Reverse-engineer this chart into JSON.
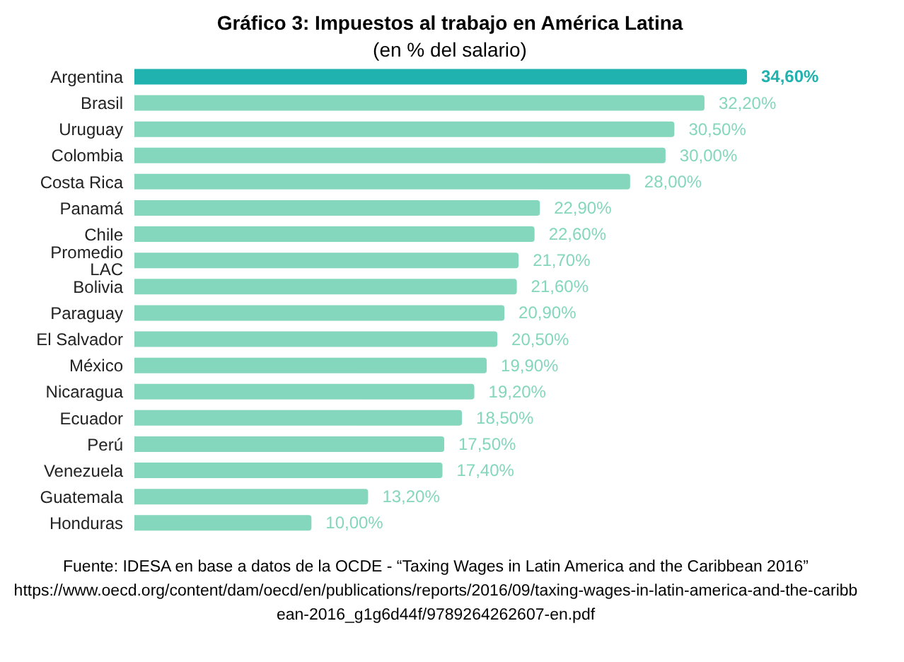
{
  "chart_data": {
    "type": "bar",
    "orientation": "horizontal",
    "title": "Gráfico 3: Impuestos al trabajo en América Latina",
    "subtitle": "(en % del salario)",
    "categories": [
      "Argentina",
      "Brasil",
      "Uruguay",
      "Colombia",
      "Costa Rica",
      "Panamá",
      "Chile",
      "Promedio LAC",
      "Bolivia",
      "Paraguay",
      "El Salvador",
      "México",
      "Nicaragua",
      "Ecuador",
      "Perú",
      "Venezuela",
      "Guatemala",
      "Honduras"
    ],
    "values": [
      34.6,
      32.2,
      30.5,
      30.0,
      28.0,
      22.9,
      22.6,
      21.7,
      21.6,
      20.9,
      20.5,
      19.9,
      19.2,
      18.5,
      17.5,
      17.4,
      13.2,
      10.0
    ],
    "value_labels": [
      "34,60%",
      "32,20%",
      "30,50%",
      "30,00%",
      "28,00%",
      "22,90%",
      "22,60%",
      "21,70%",
      "21,60%",
      "20,90%",
      "20,50%",
      "19,90%",
      "19,20%",
      "18,50%",
      "17,50%",
      "17,40%",
      "13,20%",
      "10,00%"
    ],
    "colors": [
      "#20b2ae",
      "#84d6bc",
      "#84d6bc",
      "#84d6bc",
      "#84d6bc",
      "#84d6bc",
      "#84d6bc",
      "#84d6bc",
      "#84d6bc",
      "#84d6bc",
      "#84d6bc",
      "#84d6bc",
      "#84d6bc",
      "#84d6bc",
      "#84d6bc",
      "#84d6bc",
      "#84d6bc",
      "#84d6bc"
    ],
    "annotations": [
      "Fuente: IDESA en base a datos de la OCDE - “Taxing Wages in Latin America and the Caribbean 2016”",
      "https://www.oecd.org/content/dam/oecd/en/publications/reports/2016/09/taxing-wages-in-latin-america-and-the-caribbean-2016_g1g6d44f/9789264262607-en.pdf"
    ]
  }
}
